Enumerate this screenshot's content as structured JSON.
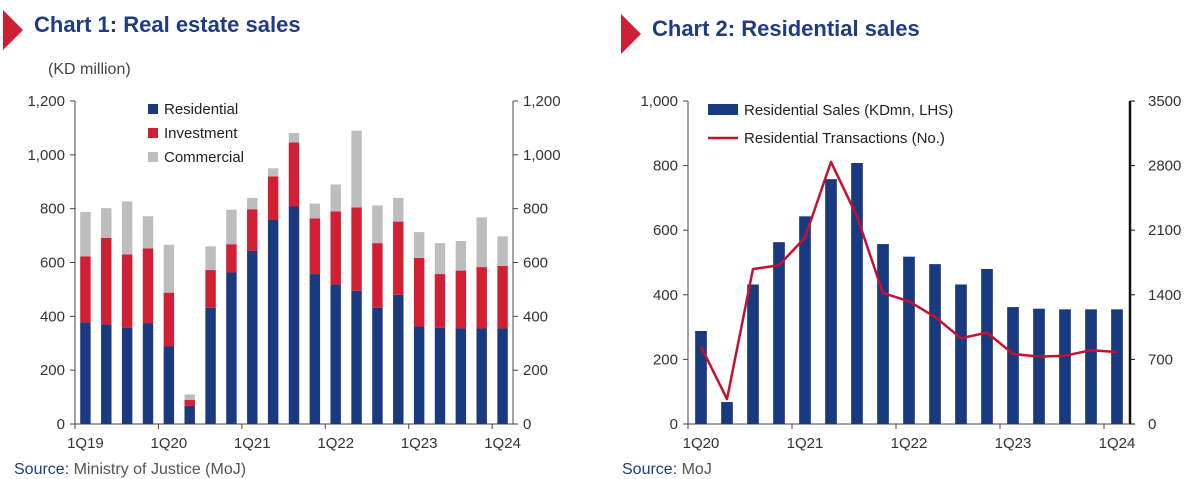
{
  "colors": {
    "title": "#1f3b82",
    "flag": "#cf1f35",
    "residential": "#1a3a80",
    "investment": "#d11f34",
    "commercial": "#bdbdbd",
    "transactions_line": "#c8102e"
  },
  "chart1": {
    "title": "Chart 1: Real estate sales",
    "units": "(KD million)",
    "source_label": "Source:",
    "source_text": "Ministry of Justice (MoJ)"
  },
  "chart2": {
    "title": "Chart 2: Residential sales",
    "source_label": "Source:",
    "source_text": "MoJ"
  },
  "chart_data": [
    {
      "type": "bar",
      "stacked": true,
      "title": "Chart 1: Real estate sales",
      "ylabel": "(KD million)",
      "ylim": [
        0,
        1200
      ],
      "yticks": [
        0,
        200,
        400,
        600,
        800,
        1000,
        1200
      ],
      "ytick_labels": [
        "0",
        "200",
        "400",
        "600",
        "800",
        "1,000",
        "1,200"
      ],
      "right_axis_mirrored": true,
      "legend_position": "top-left",
      "categories": [
        "1Q19",
        "2Q19",
        "3Q19",
        "4Q19",
        "1Q20",
        "2Q20",
        "3Q20",
        "4Q20",
        "1Q21",
        "2Q21",
        "3Q21",
        "4Q21",
        "1Q22",
        "2Q22",
        "3Q22",
        "4Q22",
        "1Q23",
        "2Q23",
        "3Q23",
        "4Q23",
        "1Q24"
      ],
      "xtick_labels": [
        "1Q19",
        "1Q20",
        "1Q21",
        "1Q22",
        "1Q23",
        "1Q24"
      ],
      "series": [
        {
          "name": "Residential",
          "color_key": "residential",
          "values": [
            378,
            370,
            358,
            375,
            288,
            68,
            432,
            563,
            643,
            758,
            808,
            557,
            518,
            495,
            432,
            480,
            362,
            357,
            355,
            355,
            355
          ]
        },
        {
          "name": "Investment",
          "color_key": "investment",
          "values": [
            245,
            322,
            272,
            277,
            200,
            22,
            140,
            105,
            155,
            162,
            238,
            207,
            272,
            310,
            240,
            272,
            255,
            200,
            215,
            228,
            232
          ]
        },
        {
          "name": "Commercial",
          "color_key": "commercial",
          "values": [
            165,
            110,
            197,
            120,
            178,
            20,
            88,
            128,
            42,
            30,
            35,
            55,
            100,
            285,
            140,
            88,
            96,
            115,
            110,
            185,
            110
          ]
        }
      ]
    },
    {
      "type": "bar+line",
      "title": "Chart 2: Residential sales",
      "categories": [
        "1Q20",
        "2Q20",
        "3Q20",
        "4Q20",
        "1Q21",
        "2Q21",
        "3Q21",
        "4Q21",
        "1Q22",
        "2Q22",
        "3Q22",
        "4Q22",
        "1Q23",
        "2Q23",
        "3Q23",
        "4Q23",
        "1Q24"
      ],
      "xtick_labels": [
        "1Q20",
        "1Q21",
        "1Q22",
        "1Q23",
        "1Q24"
      ],
      "left_axis": {
        "ylim": [
          0,
          1000
        ],
        "yticks": [
          0,
          200,
          400,
          600,
          800,
          1000
        ],
        "ytick_labels": [
          "0",
          "200",
          "400",
          "600",
          "800",
          "1,000"
        ]
      },
      "right_axis": {
        "ylim": [
          0,
          3500
        ],
        "yticks": [
          0,
          700,
          1400,
          2100,
          2800,
          3500
        ],
        "ytick_labels": [
          "0",
          "700",
          "1400",
          "2100",
          "2800",
          "3500"
        ]
      },
      "legend_position": "top-center",
      "series": [
        {
          "name": "Residential Sales (KDmn, LHS)",
          "type": "bar",
          "axis": "left",
          "color_key": "residential",
          "values": [
            288,
            68,
            432,
            563,
            643,
            758,
            808,
            557,
            518,
            495,
            432,
            480,
            362,
            357,
            355,
            355,
            355
          ]
        },
        {
          "name": "Residential Transactions (No.)",
          "type": "line",
          "axis": "right",
          "color_key": "transactions_line",
          "values": [
            840,
            270,
            1680,
            1720,
            2020,
            2840,
            2250,
            1420,
            1330,
            1160,
            930,
            990,
            760,
            730,
            740,
            800,
            780
          ]
        }
      ]
    }
  ]
}
